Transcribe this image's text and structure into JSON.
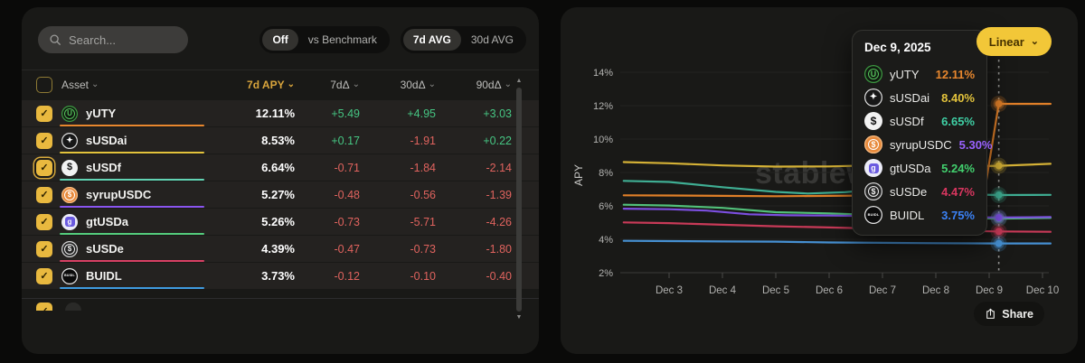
{
  "left_panel": {
    "search": {
      "placeholder": "Search..."
    },
    "toggles": {
      "benchmark": {
        "options": [
          "Off",
          "vs Benchmark"
        ],
        "active_index": 0
      },
      "avg": {
        "options": [
          "7d AVG",
          "30d AVG"
        ],
        "active_index": 0
      }
    },
    "table": {
      "headers": {
        "asset": "Asset",
        "apy": "7d APY",
        "d7": "7dΔ",
        "d30": "30dΔ",
        "d90": "90dΔ"
      },
      "sorted_column": "7d APY",
      "positive_color": "#46c683",
      "negative_color": "#e0635e",
      "rows": [
        {
          "name": "yUTY",
          "apy": "12.11%",
          "d7": "+5.49",
          "d30": "+4.95",
          "d90": "+3.03",
          "checked": true,
          "highlighted": false,
          "line_color": "#e8872e",
          "icon": {
            "bg": "#101b10",
            "border": "#3f9b43",
            "glyph": "U",
            "fg": "#56c25c",
            "fs": 8,
            "ring": true
          }
        },
        {
          "name": "sUSDai",
          "apy": "8.53%",
          "d7": "+0.17",
          "d30": "-1.91",
          "d90": "+0.22",
          "checked": true,
          "highlighted": false,
          "line_color": "#e3c33c",
          "icon": {
            "bg": "#171717",
            "border": "#dedede",
            "glyph": "✦",
            "fg": "#ffffff",
            "fs": 9
          }
        },
        {
          "name": "sUSDf",
          "apy": "6.64%",
          "d7": "-0.71",
          "d30": "-1.84",
          "d90": "-2.14",
          "checked": true,
          "highlighted": true,
          "line_color": "#62d4b4",
          "icon": {
            "bg": "#f2f2f2",
            "glyph": "$",
            "fg": "#111111",
            "fs": 11
          }
        },
        {
          "name": "syrupUSDC",
          "apy": "5.27%",
          "d7": "-0.48",
          "d30": "-0.56",
          "d90": "-1.39",
          "checked": true,
          "highlighted": false,
          "line_color": "#8a55f0",
          "icon": {
            "bg": "#e78a3c",
            "border": "#f4bb84",
            "glyph": "$",
            "fg": "#ffffff",
            "fs": 8,
            "ring": true
          }
        },
        {
          "name": "gtUSDa",
          "apy": "5.26%",
          "d7": "-0.73",
          "d30": "-5.71",
          "d90": "-4.26",
          "checked": true,
          "highlighted": false,
          "line_color": "#55cd7d",
          "icon": {
            "bg": "#ececf8",
            "glyph": "g",
            "fg": "#ffffff",
            "fs": 8,
            "badge": "#6a5ae0"
          }
        },
        {
          "name": "sUSDe",
          "apy": "4.39%",
          "d7": "-0.47",
          "d30": "-0.73",
          "d90": "-1.80",
          "checked": true,
          "highlighted": false,
          "line_color": "#d84064",
          "icon": {
            "bg": "#232323",
            "border": "#d6d6d6",
            "glyph": "$",
            "fg": "#ededed",
            "fs": 8,
            "ring": true
          }
        },
        {
          "name": "BUIDL",
          "apy": "3.73%",
          "d7": "-0.12",
          "d30": "-0.10",
          "d90": "-0.40",
          "checked": true,
          "highlighted": false,
          "line_color": "#3f9be0",
          "icon": {
            "bg": "#0b0b0b",
            "border": "#e8e8e8",
            "glyph": "BUIDL",
            "fg": "#ffffff",
            "fs": 3.5
          }
        }
      ]
    }
  },
  "right_panel": {
    "watermark": "stablewatch",
    "linear_button": {
      "label": "Linear"
    },
    "share_button": {
      "label": "Share"
    },
    "tooltip": {
      "date": "Dec 9, 2025",
      "items": [
        {
          "name": "yUTY",
          "value": "12.11%",
          "color": "#e8872e"
        },
        {
          "name": "sUSDai",
          "value": "8.40%",
          "color": "#e3c33c"
        },
        {
          "name": "sUSDf",
          "value": "6.65%",
          "color": "#3fcfa4"
        },
        {
          "name": "syrupUSDC",
          "value": "5.30%",
          "color": "#9a62ff"
        },
        {
          "name": "gtUSDa",
          "value": "5.24%",
          "color": "#42d06e"
        },
        {
          "name": "sUSDe",
          "value": "4.47%",
          "color": "#d8365f"
        },
        {
          "name": "BUIDL",
          "value": "3.75%",
          "color": "#3b82f6"
        }
      ]
    }
  },
  "chart_data": {
    "type": "line",
    "ylabel": "APY",
    "ylim": [
      2,
      14
    ],
    "y_ticks": [
      2,
      4,
      6,
      8,
      10,
      12,
      14
    ],
    "x_tick_labels": [
      "Dec 3",
      "Dec 4",
      "Dec 5",
      "Dec 6",
      "Dec 7",
      "Dec 8",
      "Dec 9",
      "Dec 10"
    ],
    "x_tick_days": [
      3,
      4,
      5,
      6,
      7,
      8,
      9,
      10
    ],
    "highlight_day": 9.18,
    "grid": true,
    "legend_position": "tooltip",
    "series": [
      {
        "name": "sUSDai",
        "color": "#d4b136",
        "marker_value": 8.4,
        "points": [
          [
            2.15,
            8.62
          ],
          [
            3,
            8.55
          ],
          [
            4,
            8.42
          ],
          [
            5,
            8.35
          ],
          [
            6,
            8.36
          ],
          [
            7,
            8.44
          ],
          [
            8,
            8.34
          ],
          [
            9.18,
            8.4
          ],
          [
            10.15,
            8.52
          ]
        ]
      },
      {
        "name": "sUSDf",
        "color": "#3fae93",
        "marker_value": 6.65,
        "points": [
          [
            2.15,
            7.5
          ],
          [
            3,
            7.43
          ],
          [
            4,
            7.12
          ],
          [
            5,
            6.84
          ],
          [
            5.6,
            6.74
          ],
          [
            6.3,
            6.82
          ],
          [
            7,
            7.0
          ],
          [
            7.8,
            6.85
          ],
          [
            8.5,
            6.7
          ],
          [
            9.18,
            6.65
          ],
          [
            10.15,
            6.66
          ]
        ]
      },
      {
        "name": "gtUSDa",
        "color": "#52c07a",
        "marker_value": 5.24,
        "points": [
          [
            2.15,
            6.07
          ],
          [
            3,
            6.02
          ],
          [
            4,
            5.88
          ],
          [
            5,
            5.62
          ],
          [
            6,
            5.55
          ],
          [
            7,
            5.44
          ],
          [
            8,
            5.32
          ],
          [
            9.18,
            5.24
          ],
          [
            10.15,
            5.28
          ]
        ]
      },
      {
        "name": "syrupUSDC",
        "color": "#7c4fe0",
        "marker_value": 5.3,
        "points": [
          [
            2.15,
            5.83
          ],
          [
            3,
            5.8
          ],
          [
            3.7,
            5.72
          ],
          [
            4.5,
            5.5
          ],
          [
            5.2,
            5.44
          ],
          [
            6,
            5.42
          ],
          [
            7,
            5.38
          ],
          [
            8,
            5.33
          ],
          [
            9.18,
            5.3
          ],
          [
            10.15,
            5.33
          ]
        ]
      },
      {
        "name": "sUSDe",
        "color": "#c93a58",
        "marker_value": 4.47,
        "points": [
          [
            2.15,
            5.01
          ],
          [
            3,
            4.97
          ],
          [
            4,
            4.87
          ],
          [
            5,
            4.78
          ],
          [
            6,
            4.71
          ],
          [
            7,
            4.63
          ],
          [
            8,
            4.53
          ],
          [
            9.18,
            4.47
          ],
          [
            10.15,
            4.45
          ]
        ]
      },
      {
        "name": "BUIDL",
        "color": "#4690d2",
        "marker_value": 3.75,
        "points": [
          [
            2.15,
            3.91
          ],
          [
            3,
            3.89
          ],
          [
            4,
            3.87
          ],
          [
            5,
            3.86
          ],
          [
            6,
            3.81
          ],
          [
            7,
            3.79
          ],
          [
            8,
            3.77
          ],
          [
            9.18,
            3.75
          ],
          [
            10.15,
            3.75
          ]
        ]
      },
      {
        "name": "yUTY",
        "color": "#e07f28",
        "marker_value": 12.11,
        "points": [
          [
            2.15,
            6.63
          ],
          [
            3,
            6.62
          ],
          [
            4,
            6.6
          ],
          [
            5,
            6.58
          ],
          [
            6,
            6.6
          ],
          [
            7,
            6.62
          ],
          [
            8,
            6.6
          ],
          [
            8.9,
            6.6
          ],
          [
            9.18,
            12.11
          ],
          [
            10.15,
            12.11
          ]
        ]
      }
    ]
  }
}
